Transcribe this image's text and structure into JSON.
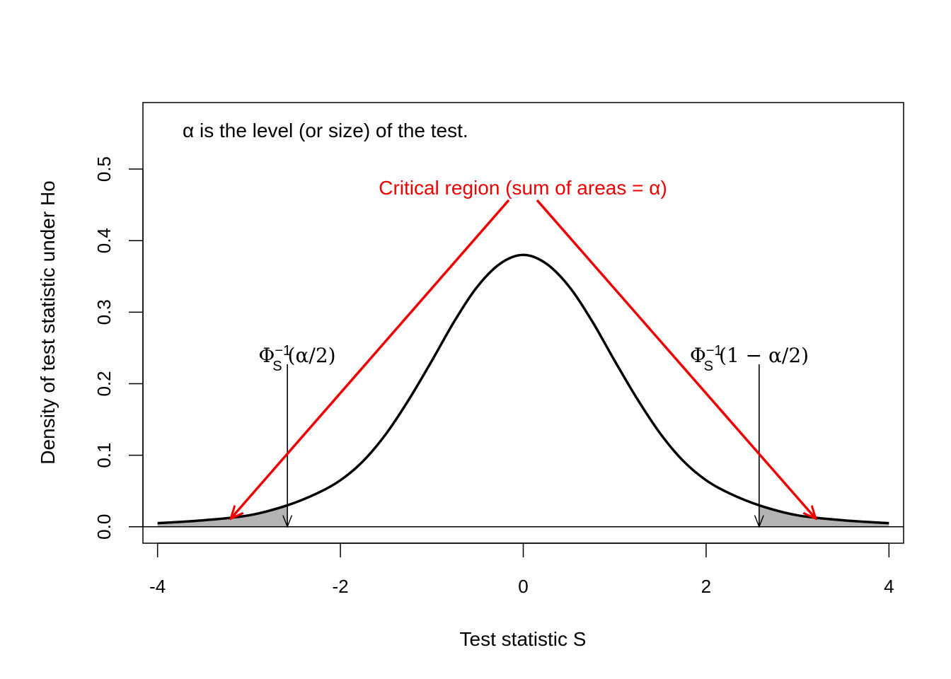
{
  "chart_data": {
    "type": "line",
    "xlabel": "Test statistic S",
    "ylabel": "Density of test statistic under Ho",
    "xlim": [
      -4.16,
      4.16
    ],
    "ylim": [
      -0.023,
      0.593
    ],
    "x_ticks": [
      -4,
      -2,
      0,
      2,
      4
    ],
    "x_tick_labels": [
      "-4",
      "-2",
      "0",
      "2",
      "4"
    ],
    "y_ticks": [
      0.0,
      0.1,
      0.2,
      0.3,
      0.4,
      0.5
    ],
    "y_tick_labels": [
      "0.0",
      "0.1",
      "0.2",
      "0.3",
      "0.4",
      "0.5"
    ],
    "grid": false,
    "curve": {
      "color": "#000000",
      "x": [
        -4.0,
        -3.5,
        -3.0,
        -2.58,
        -2.25,
        -2.0,
        -1.75,
        -1.5,
        -1.25,
        -1.0,
        -0.75,
        -0.5,
        -0.25,
        0.0,
        0.25,
        0.5,
        0.75,
        1.0,
        1.25,
        1.5,
        1.75,
        2.0,
        2.25,
        2.58,
        3.0,
        3.5,
        4.0
      ],
      "y": [
        0.005,
        0.009,
        0.016,
        0.03,
        0.047,
        0.065,
        0.092,
        0.13,
        0.178,
        0.232,
        0.288,
        0.336,
        0.368,
        0.38,
        0.368,
        0.336,
        0.288,
        0.232,
        0.178,
        0.13,
        0.092,
        0.065,
        0.047,
        0.03,
        0.016,
        0.009,
        0.005
      ]
    },
    "critical_region": {
      "fill_color": "#b3b3b3",
      "lower_tail": [
        -4.0,
        -2.58
      ],
      "upper_tail": [
        2.58,
        4.0
      ]
    },
    "critical_values": {
      "lower": {
        "x": -2.58,
        "label_prefix": "Φ",
        "label_sub": "S",
        "label_sup": "−1",
        "label_arg": "(α/2)"
      },
      "upper": {
        "x": 2.58,
        "label_prefix": "Φ",
        "label_sub": "S",
        "label_sup": "−1",
        "label_arg": "(1 − α/2)"
      }
    },
    "annotations": {
      "level_note": "α is the level (or size) of the test.",
      "critical_region_note": "Critical region (sum of areas = α)",
      "critical_region_color": "#ee0000"
    }
  }
}
